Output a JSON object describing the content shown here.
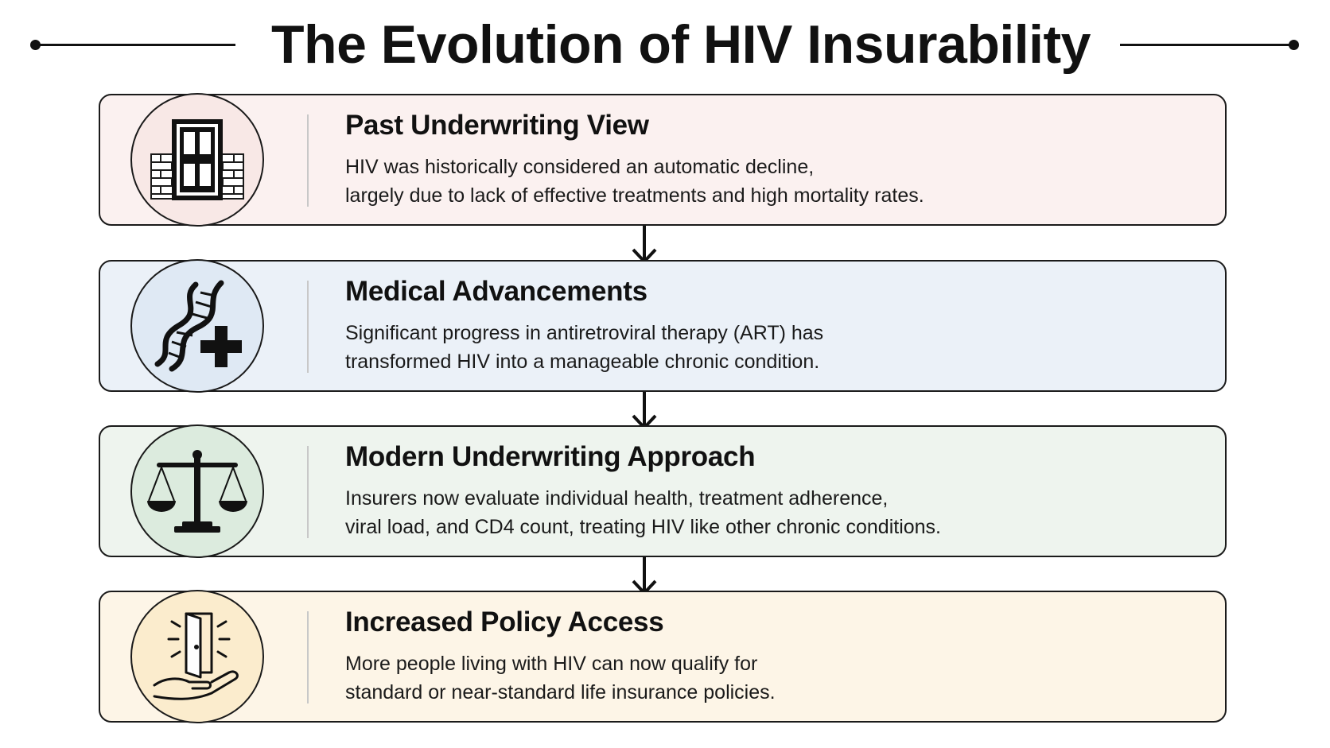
{
  "title": "The Evolution of HIV Insurability",
  "colors": {
    "stage1_bg": "#fbf1f0",
    "stage2_bg": "#ebf1f8",
    "stage3_bg": "#eef4ee",
    "stage4_bg": "#fdf5e7",
    "icon1_bg": "#f8e8e6",
    "icon2_bg": "#dfe9f4",
    "icon3_bg": "#dcebde",
    "icon4_bg": "#fbeccd"
  },
  "stages": [
    {
      "title": "Past Underwriting View",
      "icon": "blocked-door-icon",
      "lines": [
        "HIV was historically considered an automatic decline,",
        "largely due to lack of effective treatments and high mortality rates."
      ]
    },
    {
      "title": "Medical Advancements",
      "icon": "dna-plus-icon",
      "lines": [
        "Significant progress in antiretroviral therapy (ART) has",
        "transformed HIV into a manageable chronic condition."
      ]
    },
    {
      "title": "Modern Underwriting Approach",
      "icon": "balance-scale-icon",
      "lines": [
        "Insurers now evaluate individual health, treatment adherence,",
        "viral load, and CD4 count, treating HIV like other chronic conditions."
      ]
    },
    {
      "title": "Increased Policy Access",
      "icon": "open-door-hand-icon",
      "lines": [
        "More people living with HIV can now qualify for",
        "standard or near-standard life insurance policies."
      ]
    }
  ]
}
